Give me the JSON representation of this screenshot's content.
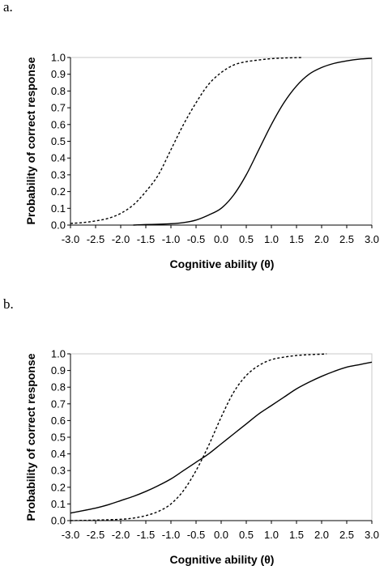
{
  "chart_data": [
    {
      "panel_label": "a.",
      "type": "line",
      "xlabel": "Cognitive ability (θ)",
      "ylabel": "Probability of correct response",
      "xlim": [
        -3.0,
        3.0
      ],
      "ylim": [
        0.0,
        1.0
      ],
      "xticks": [
        "-3.0",
        "-2.5",
        "-2.0",
        "-1.5",
        "-1.0",
        "-0.5",
        "0.0",
        "0.5",
        "1.0",
        "1.5",
        "2.0",
        "2.5",
        "3.0"
      ],
      "yticks": [
        "0.0",
        "0.1",
        "0.2",
        "0.3",
        "0.4",
        "0.5",
        "0.6",
        "0.7",
        "0.8",
        "0.9",
        "1.0"
      ],
      "grid": false,
      "series": [
        {
          "style": "dashed",
          "color": "#000000",
          "x": [
            -3.0,
            -2.75,
            -2.5,
            -2.25,
            -2.0,
            -1.75,
            -1.5,
            -1.25,
            -1.0,
            -0.75,
            -0.5,
            -0.25,
            0.0,
            0.25,
            0.5,
            0.75,
            1.0,
            1.25,
            1.5,
            1.6
          ],
          "y": [
            0.01,
            0.015,
            0.025,
            0.04,
            0.07,
            0.12,
            0.2,
            0.3,
            0.45,
            0.6,
            0.73,
            0.84,
            0.91,
            0.955,
            0.975,
            0.985,
            0.993,
            0.997,
            0.999,
            1.0
          ]
        },
        {
          "style": "solid",
          "color": "#000000",
          "x": [
            -1.75,
            -1.5,
            -1.25,
            -1.0,
            -0.75,
            -0.5,
            -0.25,
            0.0,
            0.25,
            0.5,
            0.75,
            1.0,
            1.25,
            1.5,
            1.75,
            2.0,
            2.25,
            2.5,
            2.75,
            3.0
          ],
          "y": [
            0.0,
            0.003,
            0.005,
            0.008,
            0.015,
            0.03,
            0.06,
            0.1,
            0.18,
            0.3,
            0.45,
            0.6,
            0.73,
            0.83,
            0.9,
            0.94,
            0.965,
            0.98,
            0.99,
            0.995
          ]
        }
      ]
    },
    {
      "panel_label": "b.",
      "type": "line",
      "xlabel": "Cognitive ability (θ)",
      "ylabel": "Probability of correct response",
      "xlim": [
        -3.0,
        3.0
      ],
      "ylim": [
        0.0,
        1.0
      ],
      "xticks": [
        "-3.0",
        "-2.5",
        "-2.0",
        "-1.5",
        "-1.0",
        "-0.5",
        "0.0",
        "0.5",
        "1.0",
        "1.5",
        "2.0",
        "2.5",
        "3.0"
      ],
      "yticks": [
        "0.0",
        "0.1",
        "0.2",
        "0.3",
        "0.4",
        "0.5",
        "0.6",
        "0.7",
        "0.8",
        "0.9",
        "1.0"
      ],
      "grid": false,
      "series": [
        {
          "style": "dashed",
          "color": "#000000",
          "x": [
            -3.0,
            -2.5,
            -2.0,
            -1.75,
            -1.5,
            -1.25,
            -1.0,
            -0.75,
            -0.5,
            -0.25,
            0.0,
            0.25,
            0.5,
            0.75,
            1.0,
            1.25,
            1.5,
            1.75,
            2.0,
            2.1
          ],
          "y": [
            0.0,
            0.003,
            0.008,
            0.015,
            0.03,
            0.055,
            0.1,
            0.18,
            0.3,
            0.45,
            0.62,
            0.77,
            0.87,
            0.93,
            0.965,
            0.98,
            0.99,
            0.995,
            0.998,
            1.0
          ]
        },
        {
          "style": "solid",
          "color": "#000000",
          "x": [
            -3.0,
            -2.75,
            -2.5,
            -2.25,
            -2.0,
            -1.75,
            -1.5,
            -1.25,
            -1.0,
            -0.75,
            -0.5,
            -0.25,
            0.0,
            0.25,
            0.5,
            0.75,
            1.0,
            1.25,
            1.5,
            1.75,
            2.0,
            2.25,
            2.5,
            2.75,
            3.0
          ],
          "y": [
            0.045,
            0.06,
            0.075,
            0.095,
            0.12,
            0.145,
            0.175,
            0.21,
            0.25,
            0.3,
            0.35,
            0.4,
            0.46,
            0.52,
            0.58,
            0.64,
            0.69,
            0.74,
            0.79,
            0.83,
            0.865,
            0.895,
            0.92,
            0.935,
            0.95
          ]
        }
      ]
    }
  ]
}
